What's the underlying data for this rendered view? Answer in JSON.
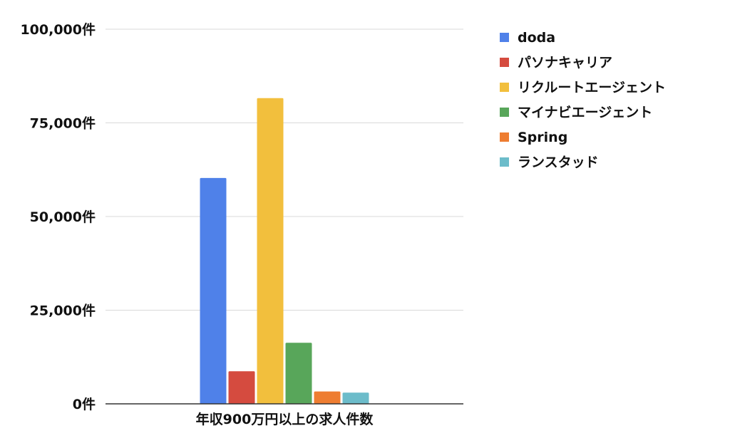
{
  "chart_data": {
    "type": "bar",
    "categories": [
      "年収900万円以上の求人件数"
    ],
    "series": [
      {
        "name": "doda",
        "color": "#4f81e9",
        "values": [
          60300
        ]
      },
      {
        "name": "パソナキャリア",
        "color": "#d54b3f",
        "values": [
          8700
        ]
      },
      {
        "name": "リクルートエージェント",
        "color": "#f2bf3d",
        "values": [
          81600
        ]
      },
      {
        "name": "マイナビエージェント",
        "color": "#58a65a",
        "values": [
          16300
        ]
      },
      {
        "name": "Spring",
        "color": "#ee7d31",
        "values": [
          3300
        ]
      },
      {
        "name": "ランスタッド",
        "color": "#6cbcca",
        "values": [
          3000
        ]
      }
    ],
    "title": "",
    "xlabel": "",
    "ylabel": "",
    "ylim": [
      0,
      100000
    ],
    "y_ticks": [
      {
        "value": 0,
        "label": "0件"
      },
      {
        "value": 25000,
        "label": "25,000件"
      },
      {
        "value": 50000,
        "label": "50,000件"
      },
      {
        "value": 75000,
        "label": "75,000件"
      },
      {
        "value": 100000,
        "label": "100,000件"
      }
    ],
    "grid": true,
    "grid_color": "#d9d9d9",
    "axis_color": "#333333",
    "legend_position": "right"
  }
}
